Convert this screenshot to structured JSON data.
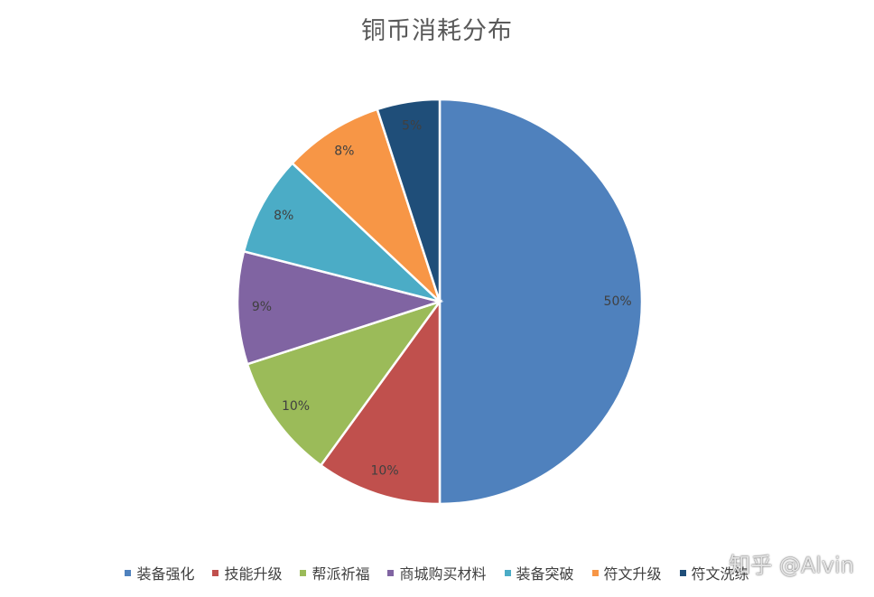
{
  "chart_data": {
    "type": "pie",
    "title": "铜币消耗分布",
    "categories": [
      "装备强化",
      "技能升级",
      "帮派祈福",
      "商城购买材料",
      "装备突破",
      "符文升级",
      "符文洗练"
    ],
    "values": [
      50,
      10,
      10,
      9,
      8,
      8,
      5
    ],
    "value_labels": [
      "50%",
      "10%",
      "10%",
      "9%",
      "8%",
      "8%",
      "5%"
    ],
    "colors": [
      "#4F81BD",
      "#C0504D",
      "#9BBB59",
      "#8064A2",
      "#4BACC6",
      "#F79646",
      "#1F4E79"
    ],
    "legend_position": "bottom"
  },
  "watermark": "知乎 @Alvin"
}
